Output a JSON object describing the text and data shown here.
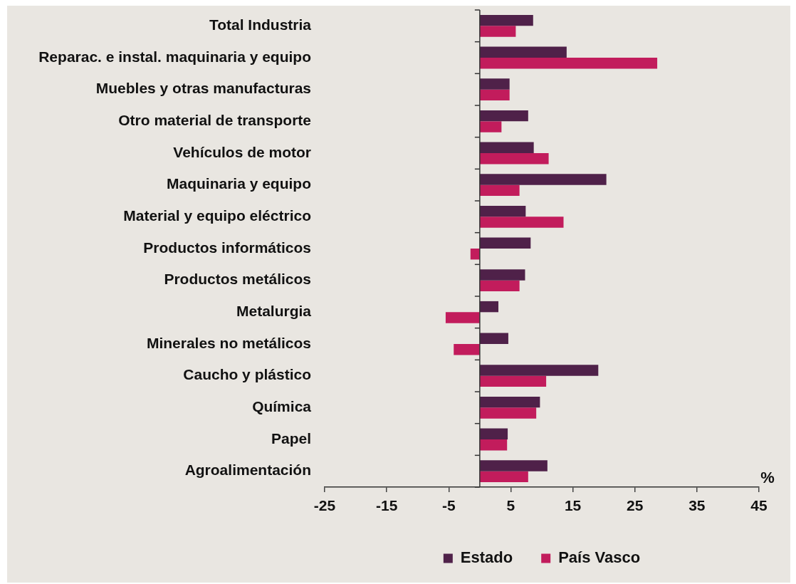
{
  "chart_data": {
    "type": "bar",
    "orientation": "horizontal",
    "xlabel": "%",
    "categories": [
      "Total Industria",
      "Reparac. e instal. maquinaria y equipo",
      "Muebles y otras manufacturas",
      "Otro material de transporte",
      "Vehículos de motor",
      "Maquinaria y equipo",
      "Material y equipo eléctrico",
      "Productos informáticos",
      "Productos metálicos",
      "Metalurgia",
      "Minerales no metálicos",
      "Caucho y plástico",
      "Química",
      "Papel",
      "Agroalimentación"
    ],
    "series": [
      {
        "name": "Estado",
        "color": "#4f2149",
        "values": [
          8.6,
          14.0,
          4.8,
          7.8,
          8.7,
          20.4,
          7.4,
          8.2,
          7.3,
          3.0,
          4.6,
          19.1,
          9.7,
          4.5,
          10.9
        ]
      },
      {
        "name": "País Vasco",
        "color": "#c21c5c",
        "values": [
          5.8,
          28.6,
          4.8,
          3.5,
          11.1,
          6.4,
          13.5,
          -1.5,
          6.4,
          -5.5,
          -4.2,
          10.7,
          9.1,
          4.4,
          7.8
        ]
      }
    ],
    "xlim": [
      -25,
      45
    ],
    "xticks": [
      -25,
      -15,
      -5,
      5,
      15,
      25,
      35,
      45
    ],
    "legend": "bottom"
  }
}
